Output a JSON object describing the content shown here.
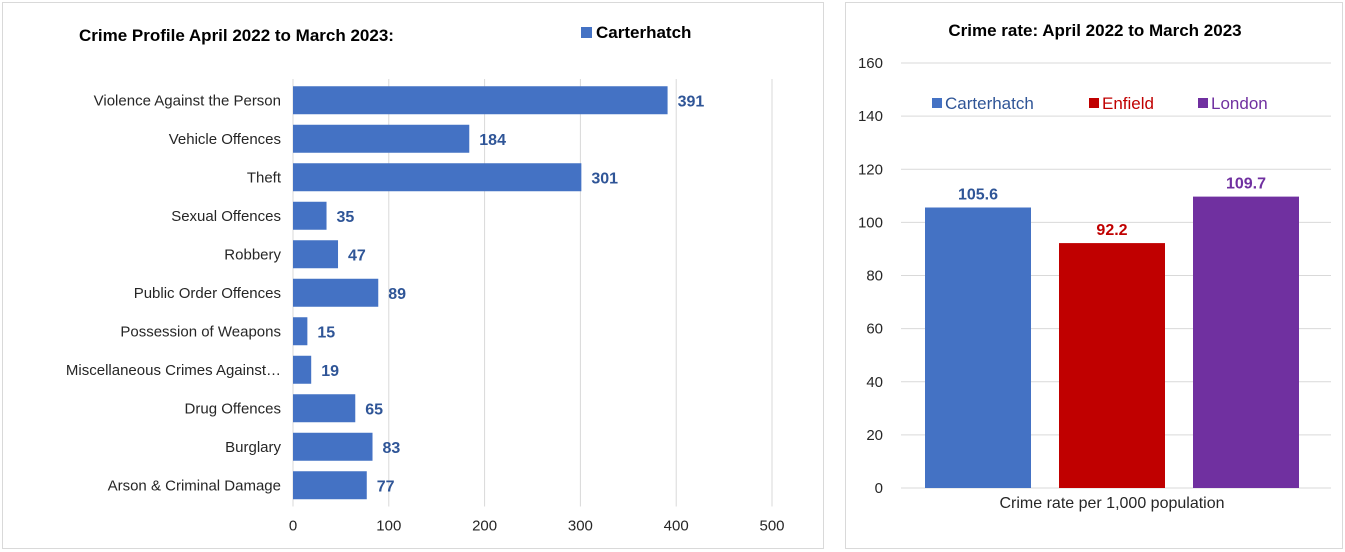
{
  "chart_data": [
    {
      "type": "bar",
      "orientation": "horizontal",
      "title": "Crime Profile April 2022 to March 2023:",
      "legend": {
        "placement": "top-right",
        "entries": [
          "Carterhatch"
        ]
      },
      "categories": [
        "Violence Against the Person",
        "Vehicle Offences",
        "Theft",
        "Sexual Offences",
        "Robbery",
        "Public Order Offences",
        "Possession of Weapons",
        "Miscellaneous Crimes Against…",
        "Drug Offences",
        "Burglary",
        "Arson & Criminal Damage"
      ],
      "series": [
        {
          "name": "Carterhatch",
          "color": "#4472C4",
          "values": [
            391,
            184,
            301,
            35,
            47,
            89,
            15,
            19,
            65,
            83,
            77
          ]
        }
      ],
      "xlim": [
        0,
        500
      ],
      "xticks": [
        0,
        100,
        200,
        300,
        400,
        500
      ],
      "grid": "vertical",
      "data_label_color": "#2F5597"
    },
    {
      "type": "bar",
      "title": "Crime rate: April 2022 to March 2023",
      "xlabel": "Crime rate per 1,000 population",
      "legend": {
        "placement": "top"
      },
      "series": [
        {
          "name": "Carterhatch",
          "value": 105.6,
          "color": "#4472C4",
          "label_color": "#2F5597"
        },
        {
          "name": "Enfield",
          "value": 92.2,
          "color": "#C00000",
          "label_color": "#C00000"
        },
        {
          "name": "London",
          "value": 109.7,
          "color": "#7030A0",
          "label_color": "#7030A0"
        }
      ],
      "ylim": [
        0,
        160
      ],
      "yticks": [
        0,
        20,
        40,
        60,
        80,
        100,
        120,
        140,
        160
      ],
      "grid": "horizontal"
    }
  ]
}
